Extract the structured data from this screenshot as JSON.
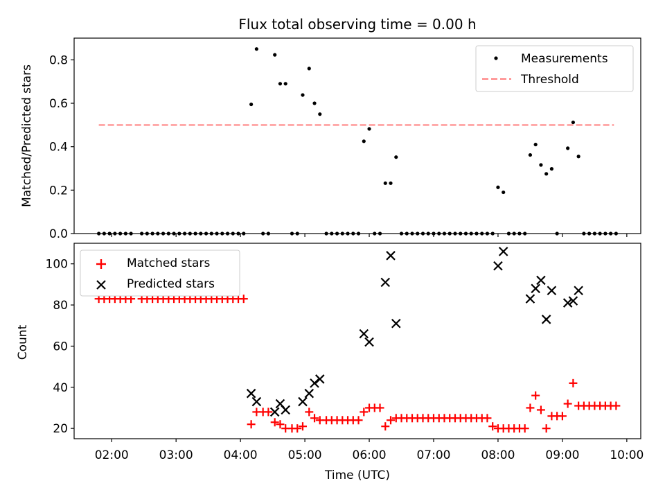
{
  "title": "Flux total observing time = 0.00 h",
  "xlabel": "Time (UTC)",
  "x_ticks": [
    "02:00",
    "03:00",
    "04:00",
    "05:00",
    "06:00",
    "07:00",
    "08:00",
    "09:00",
    "10:00"
  ],
  "chart_data": [
    {
      "type": "scatter",
      "ylabel": "Matched/Predicted stars",
      "x_range": [
        "01:25",
        "10:13"
      ],
      "ylim": [
        0,
        0.9
      ],
      "y_ticks": [
        "0.0",
        "0.2",
        "0.4",
        "0.6",
        "0.8"
      ],
      "legend": {
        "placement": "top-right",
        "entries": [
          "Measurements",
          "Threshold"
        ]
      },
      "threshold": {
        "name": "Threshold",
        "value": 0.5,
        "x_start": "01:48",
        "x_end": "09:48",
        "color": "#ff7f7f",
        "style": "dashed"
      },
      "series": [
        {
          "name": "Measurements",
          "marker": "dot",
          "color": "#000000",
          "points": [
            [
              "01:48",
              0
            ],
            [
              "01:53",
              0
            ],
            [
              "01:58",
              0
            ],
            [
              "02:03",
              0
            ],
            [
              "02:08",
              0
            ],
            [
              "02:13",
              0
            ],
            [
              "02:18",
              0
            ],
            [
              "02:28",
              0
            ],
            [
              "02:33",
              0
            ],
            [
              "02:38",
              0
            ],
            [
              "02:43",
              0
            ],
            [
              "02:48",
              0
            ],
            [
              "02:53",
              0
            ],
            [
              "02:58",
              0
            ],
            [
              "03:03",
              0
            ],
            [
              "03:08",
              0
            ],
            [
              "03:13",
              0
            ],
            [
              "03:18",
              0
            ],
            [
              "03:23",
              0
            ],
            [
              "03:28",
              0
            ],
            [
              "03:33",
              0
            ],
            [
              "03:38",
              0
            ],
            [
              "03:43",
              0
            ],
            [
              "03:48",
              0
            ],
            [
              "03:53",
              0
            ],
            [
              "03:58",
              0
            ],
            [
              "04:03",
              0
            ],
            [
              "04:10",
              0.595
            ],
            [
              "04:15",
              0.85
            ],
            [
              "04:21",
              0
            ],
            [
              "04:26",
              0
            ],
            [
              "04:32",
              0.823
            ],
            [
              "04:37",
              0.69
            ],
            [
              "04:42",
              0.69
            ],
            [
              "04:48",
              0
            ],
            [
              "04:53",
              0
            ],
            [
              "04:58",
              0.638
            ],
            [
              "05:04",
              0.76
            ],
            [
              "05:09",
              0.6
            ],
            [
              "05:14",
              0.55
            ],
            [
              "05:20",
              0
            ],
            [
              "05:25",
              0
            ],
            [
              "05:30",
              0
            ],
            [
              "05:35",
              0
            ],
            [
              "05:40",
              0
            ],
            [
              "05:45",
              0
            ],
            [
              "05:50",
              0
            ],
            [
              "05:55",
              0.425
            ],
            [
              "06:00",
              0.482
            ],
            [
              "06:05",
              0
            ],
            [
              "06:10",
              0
            ],
            [
              "06:15",
              0.232
            ],
            [
              "06:20",
              0.232
            ],
            [
              "06:25",
              0.352
            ],
            [
              "06:30",
              0
            ],
            [
              "06:35",
              0
            ],
            [
              "06:40",
              0
            ],
            [
              "06:45",
              0
            ],
            [
              "06:50",
              0
            ],
            [
              "06:55",
              0
            ],
            [
              "07:00",
              0
            ],
            [
              "07:05",
              0
            ],
            [
              "07:10",
              0
            ],
            [
              "07:15",
              0
            ],
            [
              "07:20",
              0
            ],
            [
              "07:25",
              0
            ],
            [
              "07:30",
              0
            ],
            [
              "07:35",
              0
            ],
            [
              "07:40",
              0
            ],
            [
              "07:45",
              0
            ],
            [
              "07:50",
              0
            ],
            [
              "07:55",
              0
            ],
            [
              "08:00",
              0.213
            ],
            [
              "08:05",
              0.19
            ],
            [
              "08:10",
              0
            ],
            [
              "08:15",
              0
            ],
            [
              "08:20",
              0
            ],
            [
              "08:25",
              0
            ],
            [
              "08:30",
              0.362
            ],
            [
              "08:35",
              0.41
            ],
            [
              "08:40",
              0.316
            ],
            [
              "08:45",
              0.275
            ],
            [
              "08:50",
              0.298
            ],
            [
              "08:55",
              0
            ],
            [
              "09:05",
              0.393
            ],
            [
              "09:10",
              0.512
            ],
            [
              "09:15",
              0.355
            ],
            [
              "09:20",
              0
            ],
            [
              "09:25",
              0
            ],
            [
              "09:30",
              0
            ],
            [
              "09:35",
              0
            ],
            [
              "09:40",
              0
            ],
            [
              "09:45",
              0
            ],
            [
              "09:50",
              0
            ]
          ]
        }
      ]
    },
    {
      "type": "scatter",
      "ylabel": "Count",
      "x_range": [
        "01:25",
        "10:13"
      ],
      "ylim": [
        15,
        110
      ],
      "y_ticks": [
        "20",
        "40",
        "60",
        "80",
        "100"
      ],
      "legend": {
        "placement": "top-left",
        "entries": [
          "Matched stars",
          "Predicted stars"
        ]
      },
      "series": [
        {
          "name": "Matched stars",
          "marker": "plus",
          "color": "#ff0000",
          "points": [
            [
              "01:48",
              83
            ],
            [
              "01:53",
              83
            ],
            [
              "01:58",
              83
            ],
            [
              "02:03",
              83
            ],
            [
              "02:08",
              83
            ],
            [
              "02:13",
              83
            ],
            [
              "02:18",
              83
            ],
            [
              "02:28",
              83
            ],
            [
              "02:33",
              83
            ],
            [
              "02:38",
              83
            ],
            [
              "02:43",
              83
            ],
            [
              "02:48",
              83
            ],
            [
              "02:53",
              83
            ],
            [
              "02:58",
              83
            ],
            [
              "03:03",
              83
            ],
            [
              "03:08",
              83
            ],
            [
              "03:13",
              83
            ],
            [
              "03:18",
              83
            ],
            [
              "03:23",
              83
            ],
            [
              "03:28",
              83
            ],
            [
              "03:33",
              83
            ],
            [
              "03:38",
              83
            ],
            [
              "03:43",
              83
            ],
            [
              "03:48",
              83
            ],
            [
              "03:53",
              83
            ],
            [
              "03:58",
              83
            ],
            [
              "04:03",
              83
            ],
            [
              "04:10",
              22
            ],
            [
              "04:15",
              28
            ],
            [
              "04:21",
              28
            ],
            [
              "04:26",
              28
            ],
            [
              "04:32",
              23
            ],
            [
              "04:37",
              22
            ],
            [
              "04:42",
              20
            ],
            [
              "04:48",
              20
            ],
            [
              "04:53",
              20
            ],
            [
              "04:58",
              21
            ],
            [
              "05:04",
              28
            ],
            [
              "05:09",
              25
            ],
            [
              "05:14",
              24
            ],
            [
              "05:20",
              24
            ],
            [
              "05:25",
              24
            ],
            [
              "05:30",
              24
            ],
            [
              "05:35",
              24
            ],
            [
              "05:40",
              24
            ],
            [
              "05:45",
              24
            ],
            [
              "05:50",
              24
            ],
            [
              "05:55",
              28
            ],
            [
              "06:00",
              30
            ],
            [
              "06:05",
              30
            ],
            [
              "06:10",
              30
            ],
            [
              "06:15",
              21
            ],
            [
              "06:20",
              24
            ],
            [
              "06:25",
              25
            ],
            [
              "06:30",
              25
            ],
            [
              "06:35",
              25
            ],
            [
              "06:40",
              25
            ],
            [
              "06:45",
              25
            ],
            [
              "06:50",
              25
            ],
            [
              "06:55",
              25
            ],
            [
              "07:00",
              25
            ],
            [
              "07:05",
              25
            ],
            [
              "07:10",
              25
            ],
            [
              "07:15",
              25
            ],
            [
              "07:20",
              25
            ],
            [
              "07:25",
              25
            ],
            [
              "07:30",
              25
            ],
            [
              "07:35",
              25
            ],
            [
              "07:40",
              25
            ],
            [
              "07:45",
              25
            ],
            [
              "07:50",
              25
            ],
            [
              "07:55",
              21
            ],
            [
              "08:00",
              20
            ],
            [
              "08:05",
              20
            ],
            [
              "08:10",
              20
            ],
            [
              "08:15",
              20
            ],
            [
              "08:20",
              20
            ],
            [
              "08:25",
              20
            ],
            [
              "08:30",
              30
            ],
            [
              "08:35",
              36
            ],
            [
              "08:40",
              29
            ],
            [
              "08:45",
              20
            ],
            [
              "08:50",
              26
            ],
            [
              "08:55",
              26
            ],
            [
              "09:00",
              26
            ],
            [
              "09:05",
              32
            ],
            [
              "09:10",
              42
            ],
            [
              "09:15",
              31
            ],
            [
              "09:20",
              31
            ],
            [
              "09:25",
              31
            ],
            [
              "09:30",
              31
            ],
            [
              "09:35",
              31
            ],
            [
              "09:40",
              31
            ],
            [
              "09:45",
              31
            ],
            [
              "09:50",
              31
            ]
          ]
        },
        {
          "name": "Predicted stars",
          "marker": "x",
          "color": "#000000",
          "points": [
            [
              "04:10",
              37
            ],
            [
              "04:15",
              33
            ],
            [
              "04:32",
              28
            ],
            [
              "04:37",
              32
            ],
            [
              "04:42",
              29
            ],
            [
              "04:58",
              33
            ],
            [
              "05:04",
              37
            ],
            [
              "05:09",
              42
            ],
            [
              "05:14",
              44
            ],
            [
              "05:55",
              66
            ],
            [
              "06:00",
              62
            ],
            [
              "06:15",
              91
            ],
            [
              "06:20",
              104
            ],
            [
              "06:25",
              71
            ],
            [
              "08:00",
              99
            ],
            [
              "08:05",
              106
            ],
            [
              "08:30",
              83
            ],
            [
              "08:35",
              88
            ],
            [
              "08:40",
              92
            ],
            [
              "08:45",
              73
            ],
            [
              "08:50",
              87
            ],
            [
              "09:05",
              81
            ],
            [
              "09:10",
              82
            ],
            [
              "09:15",
              87
            ]
          ]
        }
      ]
    }
  ]
}
